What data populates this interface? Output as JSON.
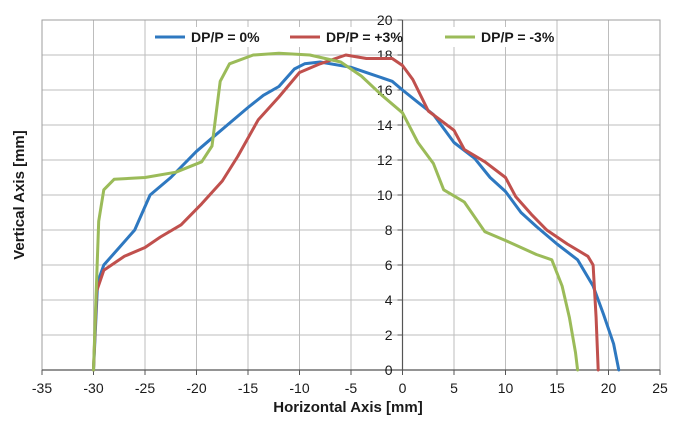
{
  "chart_data": {
    "type": "line",
    "title": "",
    "xlabel": "Horizontal Axis [mm]",
    "ylabel": "Vertical Axis [mm]",
    "xlim": [
      -35,
      25
    ],
    "ylim": [
      0,
      20
    ],
    "xticks": [
      -35,
      -30,
      -25,
      -20,
      -15,
      -10,
      -5,
      0,
      5,
      10,
      15,
      20,
      25
    ],
    "yticks": [
      0,
      2,
      4,
      6,
      8,
      10,
      12,
      14,
      16,
      18,
      20
    ],
    "grid": true,
    "legend_position": "top",
    "series": [
      {
        "name": "DP/P = 0%",
        "color": "#2E78C0",
        "points": [
          [
            -30,
            0
          ],
          [
            -29.6,
            5
          ],
          [
            -29,
            6
          ],
          [
            -27.5,
            7
          ],
          [
            -26,
            8
          ],
          [
            -24.5,
            10
          ],
          [
            -22.5,
            11
          ],
          [
            -20,
            12.5
          ],
          [
            -18,
            13.5
          ],
          [
            -15,
            15
          ],
          [
            -13.5,
            15.7
          ],
          [
            -12,
            16.2
          ],
          [
            -10.5,
            17.2
          ],
          [
            -9.5,
            17.5
          ],
          [
            -8,
            17.6
          ],
          [
            -5,
            17.3
          ],
          [
            -3,
            16.9
          ],
          [
            -1,
            16.5
          ],
          [
            0,
            16.0
          ],
          [
            1.5,
            15.3
          ],
          [
            3,
            14.6
          ],
          [
            5,
            13.0
          ],
          [
            7,
            12.1
          ],
          [
            8.5,
            11.0
          ],
          [
            10,
            10.2
          ],
          [
            11.5,
            9.0
          ],
          [
            13,
            8.2
          ],
          [
            15,
            7.2
          ],
          [
            17,
            6.3
          ],
          [
            18.5,
            4.8
          ],
          [
            19.5,
            3.2
          ],
          [
            20.5,
            1.5
          ],
          [
            21,
            0
          ]
        ]
      },
      {
        "name": "DP/P = +3%",
        "color": "#C0504D",
        "points": [
          [
            -30,
            0
          ],
          [
            -29.7,
            4.5
          ],
          [
            -29,
            5.7
          ],
          [
            -27,
            6.5
          ],
          [
            -25,
            7.0
          ],
          [
            -23.5,
            7.6
          ],
          [
            -21.5,
            8.3
          ],
          [
            -19.5,
            9.5
          ],
          [
            -17.5,
            10.8
          ],
          [
            -16,
            12.2
          ],
          [
            -14,
            14.3
          ],
          [
            -12,
            15.6
          ],
          [
            -10,
            17.0
          ],
          [
            -8,
            17.5
          ],
          [
            -5.5,
            18.0
          ],
          [
            -3.5,
            17.8
          ],
          [
            -1,
            17.8
          ],
          [
            0,
            17.4
          ],
          [
            1,
            16.6
          ],
          [
            2.5,
            14.8
          ],
          [
            5,
            13.7
          ],
          [
            6,
            12.6
          ],
          [
            8,
            11.9
          ],
          [
            10,
            11.0
          ],
          [
            11,
            9.9
          ],
          [
            12.5,
            8.9
          ],
          [
            14,
            8.0
          ],
          [
            16,
            7.2
          ],
          [
            18,
            6.5
          ],
          [
            18.5,
            6.0
          ],
          [
            18.8,
            3.0
          ],
          [
            19,
            0
          ]
        ]
      },
      {
        "name": "DP/P = -3%",
        "color": "#9BBB59",
        "points": [
          [
            -30,
            0
          ],
          [
            -29.8,
            3.5
          ],
          [
            -29.5,
            8.5
          ],
          [
            -29,
            10.3
          ],
          [
            -28,
            10.9
          ],
          [
            -25,
            11.0
          ],
          [
            -22,
            11.3
          ],
          [
            -19.5,
            11.9
          ],
          [
            -18.5,
            12.8
          ],
          [
            -17.7,
            16.5
          ],
          [
            -16.8,
            17.5
          ],
          [
            -14.5,
            18.0
          ],
          [
            -12,
            18.1
          ],
          [
            -9,
            18.0
          ],
          [
            -6,
            17.6
          ],
          [
            -4,
            16.8
          ],
          [
            -2,
            15.7
          ],
          [
            0,
            14.7
          ],
          [
            1.5,
            13.0
          ],
          [
            3,
            11.8
          ],
          [
            4,
            10.3
          ],
          [
            6,
            9.6
          ],
          [
            8,
            7.9
          ],
          [
            10,
            7.4
          ],
          [
            11.5,
            7.0
          ],
          [
            13,
            6.6
          ],
          [
            14.5,
            6.3
          ],
          [
            15.5,
            4.8
          ],
          [
            16.2,
            3.0
          ],
          [
            16.8,
            1.0
          ],
          [
            17,
            0
          ]
        ]
      }
    ]
  }
}
